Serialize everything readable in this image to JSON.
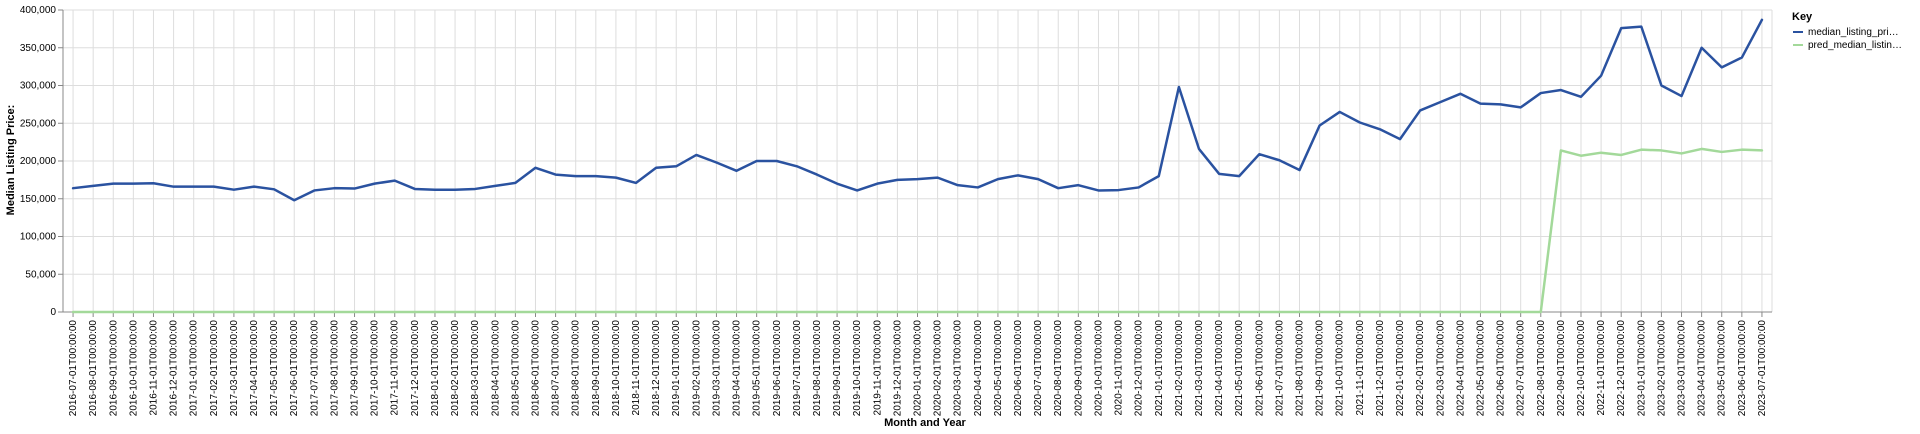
{
  "chart_data": {
    "type": "line",
    "xlabel": "Month and Year",
    "ylabel": "Median Listing Price:",
    "ylim": [
      0,
      400000
    ],
    "yticks": [
      "0",
      "50,000",
      "100,000",
      "150,000",
      "200,000",
      "250,000",
      "300,000",
      "350,000",
      "400,000"
    ],
    "ytick_values": [
      0,
      50000,
      100000,
      150000,
      200000,
      250000,
      300000,
      350000,
      400000
    ],
    "grid": true,
    "legend": {
      "title": "Key",
      "placement": "top-right",
      "labels": [
        "median_listing_pri…",
        "pred_median_listin…"
      ]
    },
    "x": [
      "2016-07-01T00:00:00",
      "2016-08-01T00:00:00",
      "2016-09-01T00:00:00",
      "2016-10-01T00:00:00",
      "2016-11-01T00:00:00",
      "2016-12-01T00:00:00",
      "2017-01-01T00:00:00",
      "2017-02-01T00:00:00",
      "2017-03-01T00:00:00",
      "2017-04-01T00:00:00",
      "2017-05-01T00:00:00",
      "2017-06-01T00:00:00",
      "2017-07-01T00:00:00",
      "2017-08-01T00:00:00",
      "2017-09-01T00:00:00",
      "2017-10-01T00:00:00",
      "2017-11-01T00:00:00",
      "2017-12-01T00:00:00",
      "2018-01-01T00:00:00",
      "2018-02-01T00:00:00",
      "2018-03-01T00:00:00",
      "2018-04-01T00:00:00",
      "2018-05-01T00:00:00",
      "2018-06-01T00:00:00",
      "2018-07-01T00:00:00",
      "2018-08-01T00:00:00",
      "2018-09-01T00:00:00",
      "2018-10-01T00:00:00",
      "2018-11-01T00:00:00",
      "2018-12-01T00:00:00",
      "2019-01-01T00:00:00",
      "2019-02-01T00:00:00",
      "2019-03-01T00:00:00",
      "2019-04-01T00:00:00",
      "2019-05-01T00:00:00",
      "2019-06-01T00:00:00",
      "2019-07-01T00:00:00",
      "2019-08-01T00:00:00",
      "2019-09-01T00:00:00",
      "2019-10-01T00:00:00",
      "2019-11-01T00:00:00",
      "2019-12-01T00:00:00",
      "2020-01-01T00:00:00",
      "2020-02-01T00:00:00",
      "2020-03-01T00:00:00",
      "2020-04-01T00:00:00",
      "2020-05-01T00:00:00",
      "2020-06-01T00:00:00",
      "2020-07-01T00:00:00",
      "2020-08-01T00:00:00",
      "2020-09-01T00:00:00",
      "2020-10-01T00:00:00",
      "2020-11-01T00:00:00",
      "2020-12-01T00:00:00",
      "2021-01-01T00:00:00",
      "2021-02-01T00:00:00",
      "2021-03-01T00:00:00",
      "2021-04-01T00:00:00",
      "2021-05-01T00:00:00",
      "2021-06-01T00:00:00",
      "2021-07-01T00:00:00",
      "2021-08-01T00:00:00",
      "2021-09-01T00:00:00",
      "2021-10-01T00:00:00",
      "2021-11-01T00:00:00",
      "2021-12-01T00:00:00",
      "2022-01-01T00:00:00",
      "2022-02-01T00:00:00",
      "2022-03-01T00:00:00",
      "2022-04-01T00:00:00",
      "2022-05-01T00:00:00",
      "2022-06-01T00:00:00",
      "2022-07-01T00:00:00",
      "2022-08-01T00:00:00",
      "2022-09-01T00:00:00",
      "2022-10-01T00:00:00",
      "2022-11-01T00:00:00",
      "2022-12-01T00:00:00",
      "2023-01-01T00:00:00",
      "2023-02-01T00:00:00",
      "2023-03-01T00:00:00",
      "2023-04-01T00:00:00",
      "2023-05-01T00:00:00",
      "2023-06-01T00:00:00",
      "2023-07-01T00:00:00"
    ],
    "series": [
      {
        "name": "median_listing_pri…",
        "color": "#2a52a0",
        "values": [
          164000,
          167000,
          170000,
          170000,
          170500,
          166000,
          166000,
          166000,
          162000,
          166000,
          162500,
          148000,
          161000,
          164000,
          163500,
          170000,
          174000,
          163000,
          162000,
          162000,
          163000,
          167000,
          171000,
          191000,
          182000,
          180000,
          180000,
          178000,
          171000,
          191000,
          193000,
          208000,
          198000,
          187000,
          200000,
          200000,
          193000,
          182000,
          170000,
          161000,
          170000,
          175000,
          176000,
          178000,
          168000,
          165000,
          176000,
          181000,
          176000,
          164000,
          168000,
          161000,
          161500,
          165000,
          180000,
          298000,
          216000,
          183000,
          180000,
          209000,
          201000,
          188000,
          247000,
          265000,
          251000,
          242000,
          229000,
          267000,
          278000,
          289000,
          276000,
          275000,
          271000,
          290000,
          294000,
          285000,
          313000,
          376000,
          378000,
          300000,
          286000,
          350000,
          324000,
          337000,
          387000
        ]
      },
      {
        "name": "pred_median_listin…",
        "color": "#a3d99a",
        "values": [
          0,
          0,
          0,
          0,
          0,
          0,
          0,
          0,
          0,
          0,
          0,
          0,
          0,
          0,
          0,
          0,
          0,
          0,
          0,
          0,
          0,
          0,
          0,
          0,
          0,
          0,
          0,
          0,
          0,
          0,
          0,
          0,
          0,
          0,
          0,
          0,
          0,
          0,
          0,
          0,
          0,
          0,
          0,
          0,
          0,
          0,
          0,
          0,
          0,
          0,
          0,
          0,
          0,
          0,
          0,
          0,
          0,
          0,
          0,
          0,
          0,
          0,
          0,
          0,
          0,
          0,
          0,
          0,
          0,
          0,
          0,
          0,
          0,
          0,
          214000,
          207000,
          211000,
          208000,
          215000,
          214000,
          210000,
          216000,
          212000,
          215000,
          214000
        ]
      }
    ]
  }
}
